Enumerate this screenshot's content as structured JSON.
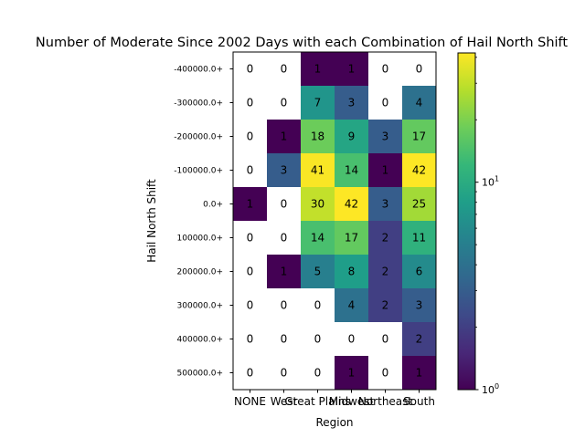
{
  "chart_data": {
    "type": "heatmap",
    "title": "Number of Moderate Since 2002 Days with each Combination of Hail North Shift",
    "xlabel": "Region",
    "ylabel": "Hail North Shift",
    "x_categories": [
      "NONE",
      "West",
      "Great Plains",
      "Midwest",
      "Northeast",
      "South"
    ],
    "y_categories": [
      "-400000.0+",
      "-300000.0+",
      "-200000.0+",
      "-100000.0+",
      "0.0+",
      "100000.0+",
      "200000.0+",
      "300000.0+",
      "400000.0+",
      "500000.0+"
    ],
    "values": [
      [
        0,
        0,
        1,
        1,
        0,
        0
      ],
      [
        0,
        0,
        7,
        3,
        0,
        4
      ],
      [
        0,
        1,
        18,
        9,
        3,
        17
      ],
      [
        0,
        3,
        41,
        14,
        1,
        42
      ],
      [
        1,
        0,
        30,
        42,
        3,
        25
      ],
      [
        0,
        0,
        14,
        17,
        2,
        11
      ],
      [
        0,
        1,
        5,
        8,
        2,
        6
      ],
      [
        0,
        0,
        0,
        4,
        2,
        3
      ],
      [
        0,
        0,
        0,
        0,
        0,
        2
      ],
      [
        0,
        0,
        0,
        1,
        0,
        1
      ]
    ],
    "color_scale": "log",
    "colormap": "viridis",
    "zero_color": "#ffffff",
    "colorbar": {
      "range": [
        1,
        42
      ],
      "ticks": [
        {
          "value": 1,
          "base": "10",
          "exp": "0"
        },
        {
          "value": 10,
          "base": "10",
          "exp": "1"
        }
      ]
    }
  }
}
